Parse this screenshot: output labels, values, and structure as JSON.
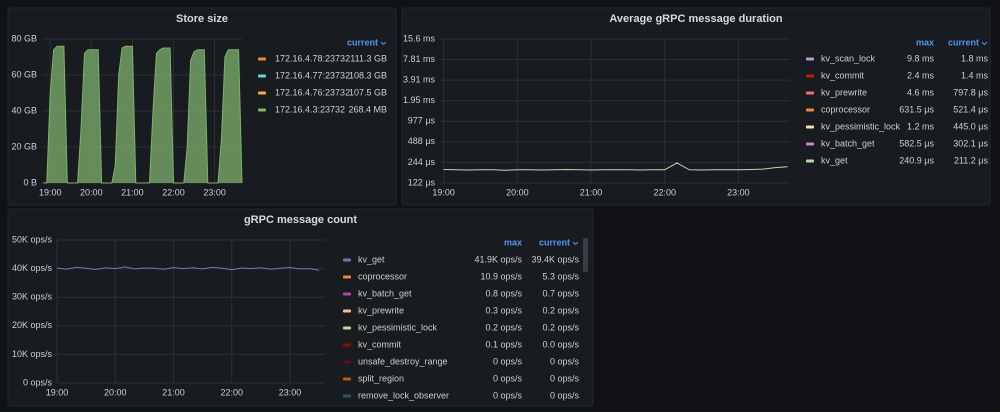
{
  "chart_data": [
    {
      "type": "area",
      "title": "Store size",
      "x": [
        "18:50",
        "18:55",
        "19:00",
        "19:05",
        "19:10",
        "19:15",
        "19:20",
        "19:25",
        "19:30",
        "19:35",
        "19:40",
        "19:45",
        "19:50",
        "19:55",
        "20:00",
        "20:05",
        "20:10",
        "20:15",
        "20:20",
        "20:25",
        "20:30",
        "20:35",
        "20:40",
        "20:45",
        "20:50",
        "20:55",
        "21:00",
        "21:05",
        "21:10",
        "21:15",
        "21:20",
        "21:25",
        "21:30",
        "21:35",
        "21:40",
        "21:45",
        "21:50",
        "21:55",
        "22:00",
        "22:05",
        "22:10",
        "22:15",
        "22:20",
        "22:25",
        "22:30",
        "22:35",
        "22:40",
        "22:45",
        "22:50",
        "22:55",
        "23:00",
        "23:05",
        "23:10",
        "23:15",
        "23:20",
        "23:25",
        "23:30",
        "23:35",
        "23:40"
      ],
      "xlim": [
        "18:48",
        "23:40"
      ],
      "xticks": [
        "19:00",
        "20:00",
        "21:00",
        "22:00",
        "23:00"
      ],
      "ylim": [
        0,
        80
      ],
      "yticks": [
        {
          "value": 0,
          "label": "0 B"
        },
        {
          "value": 20,
          "label": "20 GB"
        },
        {
          "value": 40,
          "label": "40 GB"
        },
        {
          "value": 60,
          "label": "60 GB"
        },
        {
          "value": 80,
          "label": "80 GB"
        }
      ],
      "grid": true,
      "legend_columns": [
        "current"
      ],
      "series": [
        {
          "name": "172.16.4.78:23732",
          "color": "#ef843c",
          "legend": [
            "111.3 GB"
          ]
        },
        {
          "name": "172.16.4.77:23732",
          "color": "#6ed0e0",
          "legend": [
            "108.3 GB"
          ]
        },
        {
          "name": "172.16.4.76:23732",
          "color": "#eab839",
          "legend": [
            "107.5 GB"
          ]
        },
        {
          "name": "172.16.4.3:23732",
          "color": "#7eb26d",
          "legend": [
            "268.4 MB"
          ],
          "values": [
            0,
            0,
            50,
            74,
            76,
            76,
            76,
            0,
            0,
            0,
            0,
            30,
            72,
            74,
            74,
            74,
            74,
            0,
            0,
            0,
            0,
            10,
            60,
            75,
            76,
            76,
            76,
            0,
            0,
            0,
            0,
            0,
            40,
            72,
            74,
            75,
            75,
            75,
            0,
            0,
            0,
            0,
            20,
            68,
            73,
            74,
            74,
            74,
            0,
            0,
            0,
            0,
            25,
            70,
            74,
            74,
            74,
            74,
            0
          ]
        }
      ]
    },
    {
      "type": "line",
      "title": "Average gRPC message duration",
      "x": [
        "19:00",
        "19:10",
        "19:20",
        "19:30",
        "19:40",
        "19:50",
        "20:00",
        "20:10",
        "20:20",
        "20:30",
        "20:40",
        "20:50",
        "21:00",
        "21:10",
        "21:20",
        "21:30",
        "21:40",
        "21:50",
        "22:00",
        "22:10",
        "22:20",
        "22:30",
        "22:40",
        "22:50",
        "23:00",
        "23:10",
        "23:20",
        "23:30",
        "23:40"
      ],
      "xlim": [
        "18:57",
        "23:42"
      ],
      "xticks": [
        "19:00",
        "20:00",
        "21:00",
        "22:00",
        "23:00"
      ],
      "log_scale": true,
      "ylim": [
        122,
        15600
      ],
      "yticks": [
        {
          "value": 122,
          "label": "122 μs"
        },
        {
          "value": 244,
          "label": "244 μs"
        },
        {
          "value": 488,
          "label": "488 μs"
        },
        {
          "value": 977,
          "label": "977 μs"
        },
        {
          "value": 1950,
          "label": "1.95 ms"
        },
        {
          "value": 3910,
          "label": "3.91 ms"
        },
        {
          "value": 7810,
          "label": "7.81 ms"
        },
        {
          "value": 15600,
          "label": "15.6 ms"
        }
      ],
      "grid": true,
      "legend_columns": [
        "max",
        "current"
      ],
      "series": [
        {
          "name": "kv_scan_lock",
          "color": "#b59ae0",
          "legend": [
            "9.8 ms",
            "1.8 ms"
          ]
        },
        {
          "name": "kv_commit",
          "color": "#bf1b00",
          "legend": [
            "2.4 ms",
            "1.4 ms"
          ]
        },
        {
          "name": "kv_prewrite",
          "color": "#f2726f",
          "legend": [
            "4.6 ms",
            "797.8 μs"
          ]
        },
        {
          "name": "coprocessor",
          "color": "#ef843c",
          "legend": [
            "631.5 μs",
            "521.4 μs"
          ]
        },
        {
          "name": "kv_pessimistic_lock",
          "color": "#f9e2b2",
          "legend": [
            "1.2 ms",
            "445.0 μs"
          ]
        },
        {
          "name": "kv_batch_get",
          "color": "#d683ce",
          "legend": [
            "582.5 μs",
            "302.1 μs"
          ]
        },
        {
          "name": "kv_get",
          "color": "#b7dbab",
          "legend": [
            "240.9 μs",
            "211.2 μs"
          ],
          "values": [
            192,
            190,
            189,
            191,
            190,
            188,
            190,
            191,
            189,
            190,
            192,
            190,
            189,
            190,
            191,
            190,
            189,
            190,
            191,
            240,
            190,
            189,
            190,
            191,
            190,
            192,
            195,
            205,
            211
          ]
        }
      ]
    },
    {
      "type": "line",
      "title": "gRPC message count",
      "x": [
        "19:00",
        "19:10",
        "19:20",
        "19:30",
        "19:40",
        "19:50",
        "20:00",
        "20:10",
        "20:20",
        "20:30",
        "20:40",
        "20:50",
        "21:00",
        "21:10",
        "21:20",
        "21:30",
        "21:40",
        "21:50",
        "22:00",
        "22:10",
        "22:20",
        "22:30",
        "22:40",
        "22:50",
        "23:00",
        "23:10",
        "23:20",
        "23:30"
      ],
      "xlim": [
        "19:00",
        "23:36"
      ],
      "xticks": [
        "19:00",
        "20:00",
        "21:00",
        "22:00",
        "23:00"
      ],
      "ylim": [
        0,
        50000
      ],
      "yticks": [
        {
          "value": 0,
          "label": "0 ops/s"
        },
        {
          "value": 10000,
          "label": "10K ops/s"
        },
        {
          "value": 20000,
          "label": "20K ops/s"
        },
        {
          "value": 30000,
          "label": "30K ops/s"
        },
        {
          "value": 40000,
          "label": "40K ops/s"
        },
        {
          "value": 50000,
          "label": "50K ops/s"
        }
      ],
      "grid": true,
      "legend_columns": [
        "max",
        "current"
      ],
      "series": [
        {
          "name": "kv_get",
          "color": "#806eb7",
          "legend": [
            "41.9K ops/s",
            "39.4K ops/s"
          ],
          "values": [
            40200,
            39800,
            40500,
            40100,
            39700,
            40300,
            40000,
            40600,
            39900,
            40200,
            40100,
            39800,
            40400,
            40000,
            40300,
            39900,
            40500,
            40100,
            39600,
            40200,
            40000,
            40300,
            39800,
            40100,
            40400,
            39900,
            40000,
            39400
          ]
        },
        {
          "name": "coprocessor",
          "color": "#ef843c",
          "legend": [
            "10.9 ops/s",
            "5.3 ops/s"
          ]
        },
        {
          "name": "kv_batch_get",
          "color": "#ba43a9",
          "legend": [
            "0.8 ops/s",
            "0.7 ops/s"
          ]
        },
        {
          "name": "kv_prewrite",
          "color": "#f9ba8f",
          "legend": [
            "0.3 ops/s",
            "0.2 ops/s"
          ]
        },
        {
          "name": "kv_pessimistic_lock",
          "color": "#b7dbab",
          "legend": [
            "0.2 ops/s",
            "0.2 ops/s"
          ]
        },
        {
          "name": "kv_commit",
          "color": "#890f02",
          "legend": [
            "0.1 ops/s",
            "0.0 ops/s"
          ]
        },
        {
          "name": "unsafe_destroy_range",
          "color": "#58140c",
          "legend": [
            "0 ops/s",
            "0 ops/s"
          ]
        },
        {
          "name": "split_region",
          "color": "#c15c17",
          "legend": [
            "0 ops/s",
            "0 ops/s"
          ]
        },
        {
          "name": "remove_lock_observer",
          "color": "#2f575e",
          "legend": [
            "0 ops/s",
            "0 ops/s"
          ]
        }
      ]
    }
  ]
}
